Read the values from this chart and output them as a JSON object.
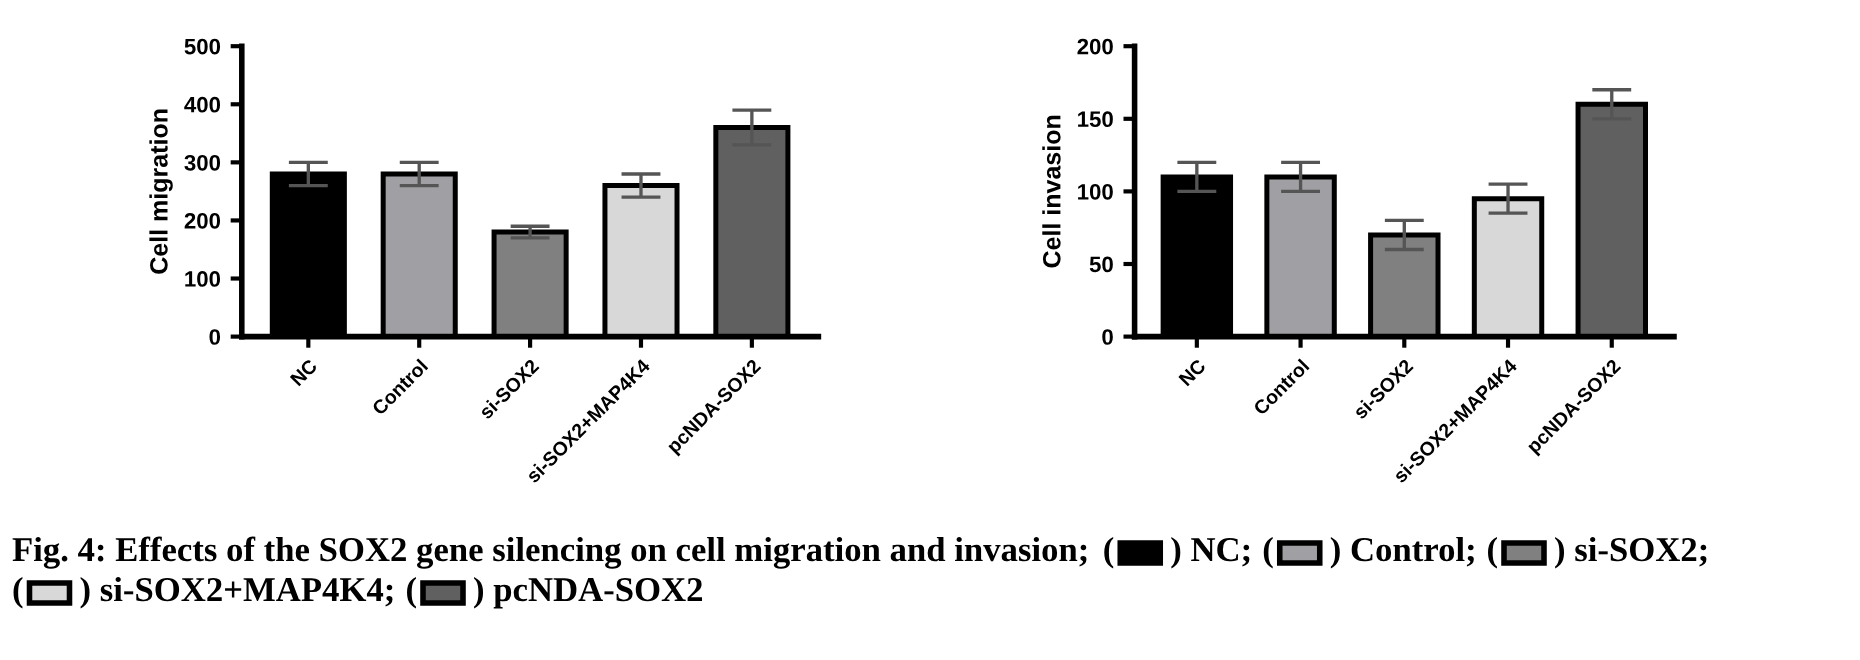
{
  "chart_data": [
    {
      "type": "bar",
      "ylabel": "Cell migration",
      "categories": [
        "NC",
        "Control",
        "si-SOX2",
        "si-SOX2+MAP4K4",
        "pcNDA-SOX2"
      ],
      "values": [
        280,
        280,
        180,
        260,
        360
      ],
      "errors": [
        20,
        20,
        10,
        20,
        30
      ],
      "colors": [
        "#000000",
        "#a0a0a4",
        "#808080",
        "#d8d8d8",
        "#606060"
      ],
      "ylim": [
        0,
        500
      ],
      "yticks": [
        0,
        100,
        200,
        300,
        400,
        500
      ],
      "grid": false,
      "annotations": [
        "Fig. 4: Effects of the SOX2 gene silencing on cell migration and invasion;",
        "(",
        ") NC;",
        "(",
        ") Control;",
        "(",
        ") si-SOX2;",
        "(",
        ") si-SOX2+MAP4K4;",
        "(",
        ") pcNDA-SOX2"
      ]
    },
    {
      "type": "bar",
      "ylabel": "Cell invasion",
      "categories": [
        "NC",
        "Control",
        "si-SOX2",
        "si-SOX2+MAP4K4",
        "pcNDA-SOX2"
      ],
      "values": [
        110,
        110,
        70,
        95,
        160
      ],
      "errors": [
        10,
        10,
        10,
        10,
        10
      ],
      "colors": [
        "#000000",
        "#a0a0a4",
        "#808080",
        "#d8d8d8",
        "#606060"
      ],
      "ylim": [
        0,
        200
      ],
      "yticks": [
        0,
        50,
        100,
        150,
        200
      ],
      "grid": false
    }
  ]
}
